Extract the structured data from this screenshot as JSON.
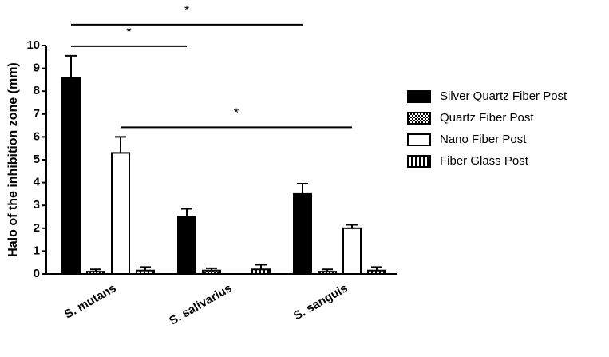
{
  "chart_data": {
    "type": "bar",
    "y_label": "Halo of the inhibition zone (mm)",
    "categories": [
      "S. mutans",
      "S. salivarius",
      "S. sanguis"
    ],
    "series": [
      {
        "name": "Silver Quartz Fiber Post",
        "color": "#000000",
        "pattern": "solid",
        "values": [
          8.6,
          2.5,
          3.5
        ],
        "errors": [
          0.95,
          0.35,
          0.45
        ]
      },
      {
        "name": "Quartz Fiber Post",
        "color": "#000000",
        "pattern": "checker",
        "values": [
          0.1,
          0.15,
          0.1
        ],
        "errors": [
          0.1,
          0.1,
          0.1
        ]
      },
      {
        "name": "Nano Fiber Post",
        "color": "#ffffff",
        "pattern": "solid",
        "values": [
          5.3,
          0,
          2.0
        ],
        "errors": [
          0.7,
          0,
          0.15
        ]
      },
      {
        "name": "Fiber Glass Post",
        "color": "#000000",
        "pattern": "vertical-stripes",
        "values": [
          0.15,
          0.2,
          0.15
        ],
        "errors": [
          0.15,
          0.2,
          0.15
        ]
      }
    ],
    "ylim": [
      0,
      10
    ],
    "yticks": [
      0,
      1,
      2,
      3,
      4,
      5,
      6,
      7,
      8,
      9,
      10
    ],
    "annotations": [
      {
        "label": "*",
        "from": [
          0,
          0
        ],
        "to": [
          2,
          0
        ]
      },
      {
        "label": "*",
        "from": [
          0,
          0
        ],
        "to": [
          1,
          0
        ]
      },
      {
        "label": "*",
        "from": [
          0,
          2
        ],
        "to": [
          2,
          2
        ]
      }
    ]
  }
}
